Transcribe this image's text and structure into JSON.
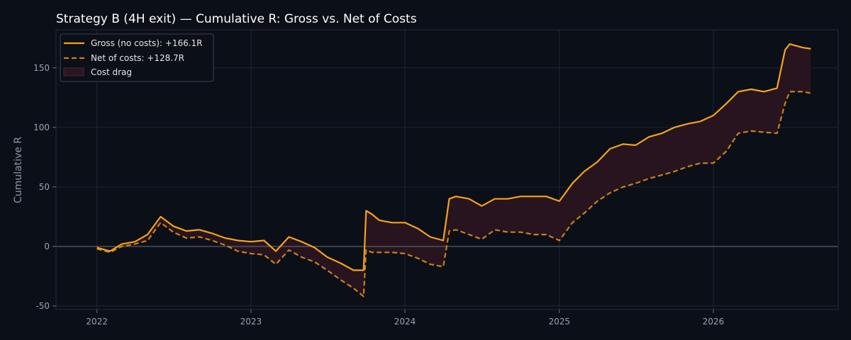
{
  "chart_data": {
    "type": "line",
    "title": "Strategy B (4H exit) — Cumulative R: Gross vs. Net of Costs",
    "xlabel": "",
    "ylabel": "Cumulative R",
    "xlim": [
      "2021-09-26",
      "2026-10-24"
    ],
    "ylim": [
      -53,
      182
    ],
    "x_ticks": [
      "2022",
      "2023",
      "2024",
      "2025",
      "2026"
    ],
    "y_ticks": [
      -50,
      0,
      50,
      100,
      150
    ],
    "grid": true,
    "zero_line": true,
    "legend": {
      "placement": "top-left",
      "entries": [
        "Gross (no costs): +166.1R",
        "Net of costs: +128.7R",
        "Cost drag"
      ]
    },
    "colors": {
      "background": "#0b0f17",
      "grid": "#1e2633",
      "gross": "#f5a31a",
      "net": "#c8801e",
      "cost_drag_fill": "#2a1520"
    },
    "series": [
      {
        "name": "Gross (no costs): +166.1R",
        "style": "solid",
        "x": [
          "2022-01-01",
          "2022-02-01",
          "2022-03-01",
          "2022-04-01",
          "2022-05-01",
          "2022-06-01",
          "2022-07-01",
          "2022-08-01",
          "2022-09-01",
          "2022-10-01",
          "2022-11-01",
          "2022-12-01",
          "2023-01-01",
          "2023-02-01",
          "2023-03-01",
          "2023-04-01",
          "2023-05-01",
          "2023-06-01",
          "2023-07-01",
          "2023-08-01",
          "2023-09-01",
          "2023-09-25",
          "2023-10-01",
          "2023-10-15",
          "2023-11-01",
          "2023-12-01",
          "2024-01-01",
          "2024-02-01",
          "2024-03-01",
          "2024-04-01",
          "2024-04-15",
          "2024-05-01",
          "2024-06-01",
          "2024-07-01",
          "2024-08-01",
          "2024-09-01",
          "2024-10-01",
          "2024-11-01",
          "2024-12-01",
          "2025-01-01",
          "2025-02-01",
          "2025-03-01",
          "2025-04-01",
          "2025-05-01",
          "2025-06-01",
          "2025-07-01",
          "2025-08-01",
          "2025-09-01",
          "2025-10-01",
          "2025-11-01",
          "2025-12-01",
          "2026-01-01",
          "2026-02-01",
          "2026-03-01",
          "2026-04-01",
          "2026-05-01",
          "2026-06-01",
          "2026-06-20",
          "2026-07-01",
          "2026-08-01",
          "2026-08-20"
        ],
        "values": [
          -1,
          -4,
          2,
          4,
          10,
          25,
          17,
          13,
          14,
          11,
          7,
          5,
          4,
          5,
          -4,
          8,
          4,
          -1,
          -9,
          -14,
          -20,
          -20,
          30,
          27,
          22,
          20,
          20,
          15,
          8,
          5,
          40,
          42,
          40,
          34,
          40,
          40,
          42,
          42,
          42,
          38,
          53,
          63,
          71,
          82,
          86,
          85,
          92,
          95,
          100,
          103,
          105,
          110,
          120,
          130,
          132,
          130,
          133,
          165,
          170,
          167,
          166
        ]
      },
      {
        "name": "Net of costs: +128.7R",
        "style": "dashed",
        "x": [
          "2022-01-01",
          "2022-02-01",
          "2022-03-01",
          "2022-04-01",
          "2022-05-01",
          "2022-06-01",
          "2022-07-01",
          "2022-08-01",
          "2022-09-01",
          "2022-10-01",
          "2022-11-01",
          "2022-12-01",
          "2023-01-01",
          "2023-02-01",
          "2023-03-01",
          "2023-04-01",
          "2023-05-01",
          "2023-06-01",
          "2023-07-01",
          "2023-08-01",
          "2023-09-01",
          "2023-09-25",
          "2023-10-01",
          "2023-10-15",
          "2023-11-01",
          "2023-12-01",
          "2024-01-01",
          "2024-02-01",
          "2024-03-01",
          "2024-04-01",
          "2024-04-15",
          "2024-05-01",
          "2024-06-01",
          "2024-07-01",
          "2024-08-01",
          "2024-09-01",
          "2024-10-01",
          "2024-11-01",
          "2024-12-01",
          "2025-01-01",
          "2025-02-01",
          "2025-03-01",
          "2025-04-01",
          "2025-05-01",
          "2025-06-01",
          "2025-07-01",
          "2025-08-01",
          "2025-09-01",
          "2025-10-01",
          "2025-11-01",
          "2025-12-01",
          "2026-01-01",
          "2026-02-01",
          "2026-03-01",
          "2026-04-01",
          "2026-05-01",
          "2026-06-01",
          "2026-06-20",
          "2026-07-01",
          "2026-08-01",
          "2026-08-20"
        ],
        "values": [
          -2,
          -5,
          0,
          2,
          5,
          20,
          12,
          7,
          8,
          5,
          1,
          -4,
          -6,
          -7,
          -15,
          -3,
          -9,
          -13,
          -20,
          -28,
          -35,
          -42,
          -3,
          -5,
          -5,
          -5,
          -6,
          -10,
          -15,
          -17,
          13,
          14,
          10,
          6,
          14,
          12,
          12,
          10,
          10,
          5,
          20,
          28,
          38,
          45,
          50,
          53,
          57,
          60,
          63,
          67,
          70,
          70,
          80,
          95,
          97,
          96,
          95,
          120,
          130,
          130,
          128.7
        ]
      }
    ]
  }
}
